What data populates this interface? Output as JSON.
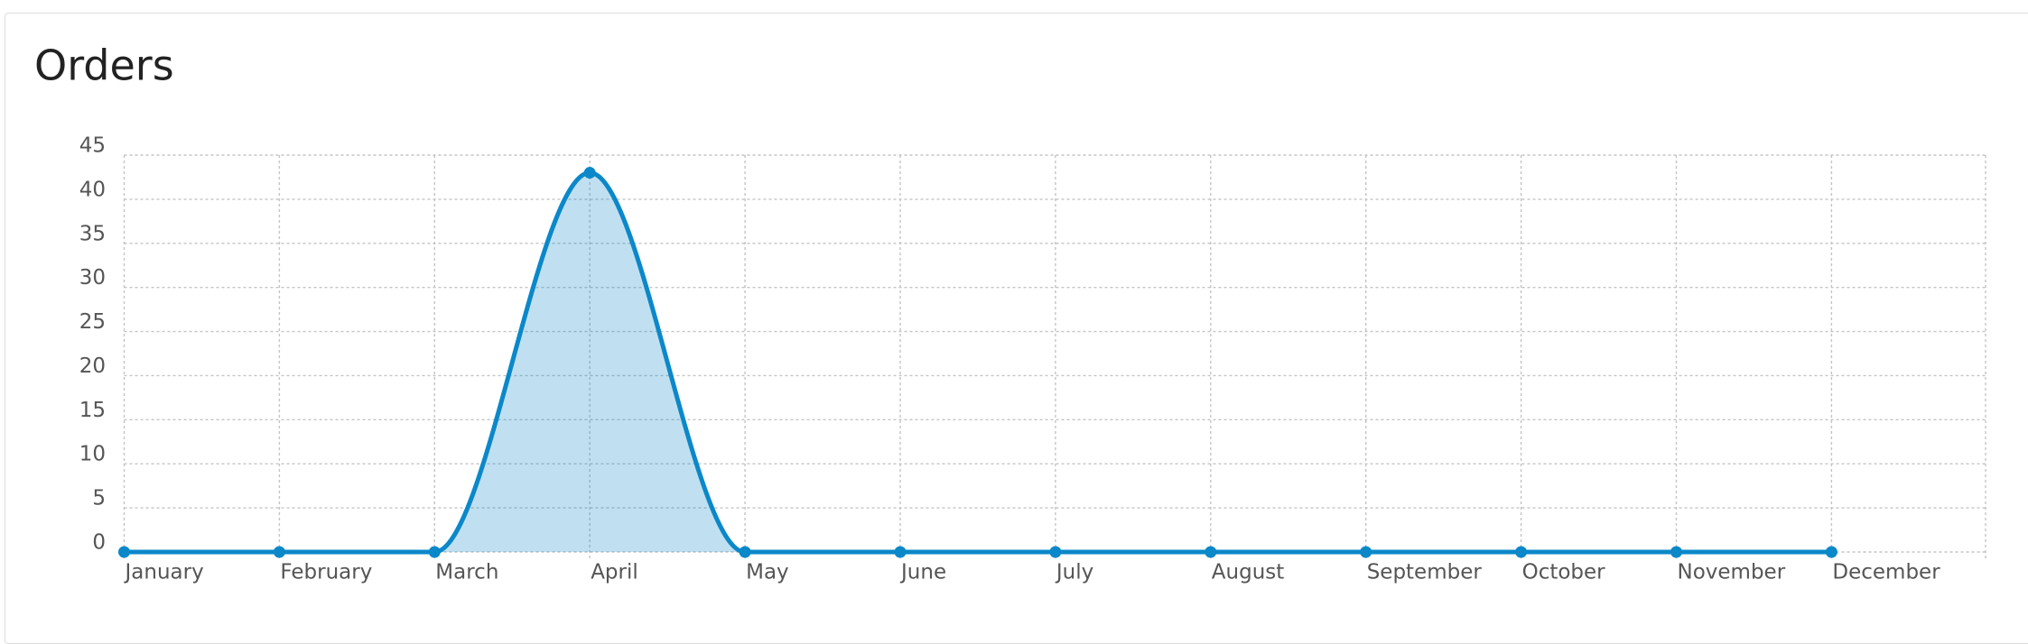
{
  "chart_data": {
    "type": "line",
    "title": "Orders",
    "categories": [
      "January",
      "February",
      "March",
      "April",
      "May",
      "June",
      "July",
      "August",
      "September",
      "October",
      "November",
      "December"
    ],
    "values": [
      0,
      0,
      0,
      43,
      0,
      0,
      0,
      0,
      0,
      0,
      0,
      0
    ],
    "color": "#0b88c9",
    "ylim": [
      0,
      45
    ],
    "yticks": [
      0,
      5,
      10,
      15,
      20,
      25,
      30,
      35,
      40,
      45
    ],
    "grid": true
  }
}
